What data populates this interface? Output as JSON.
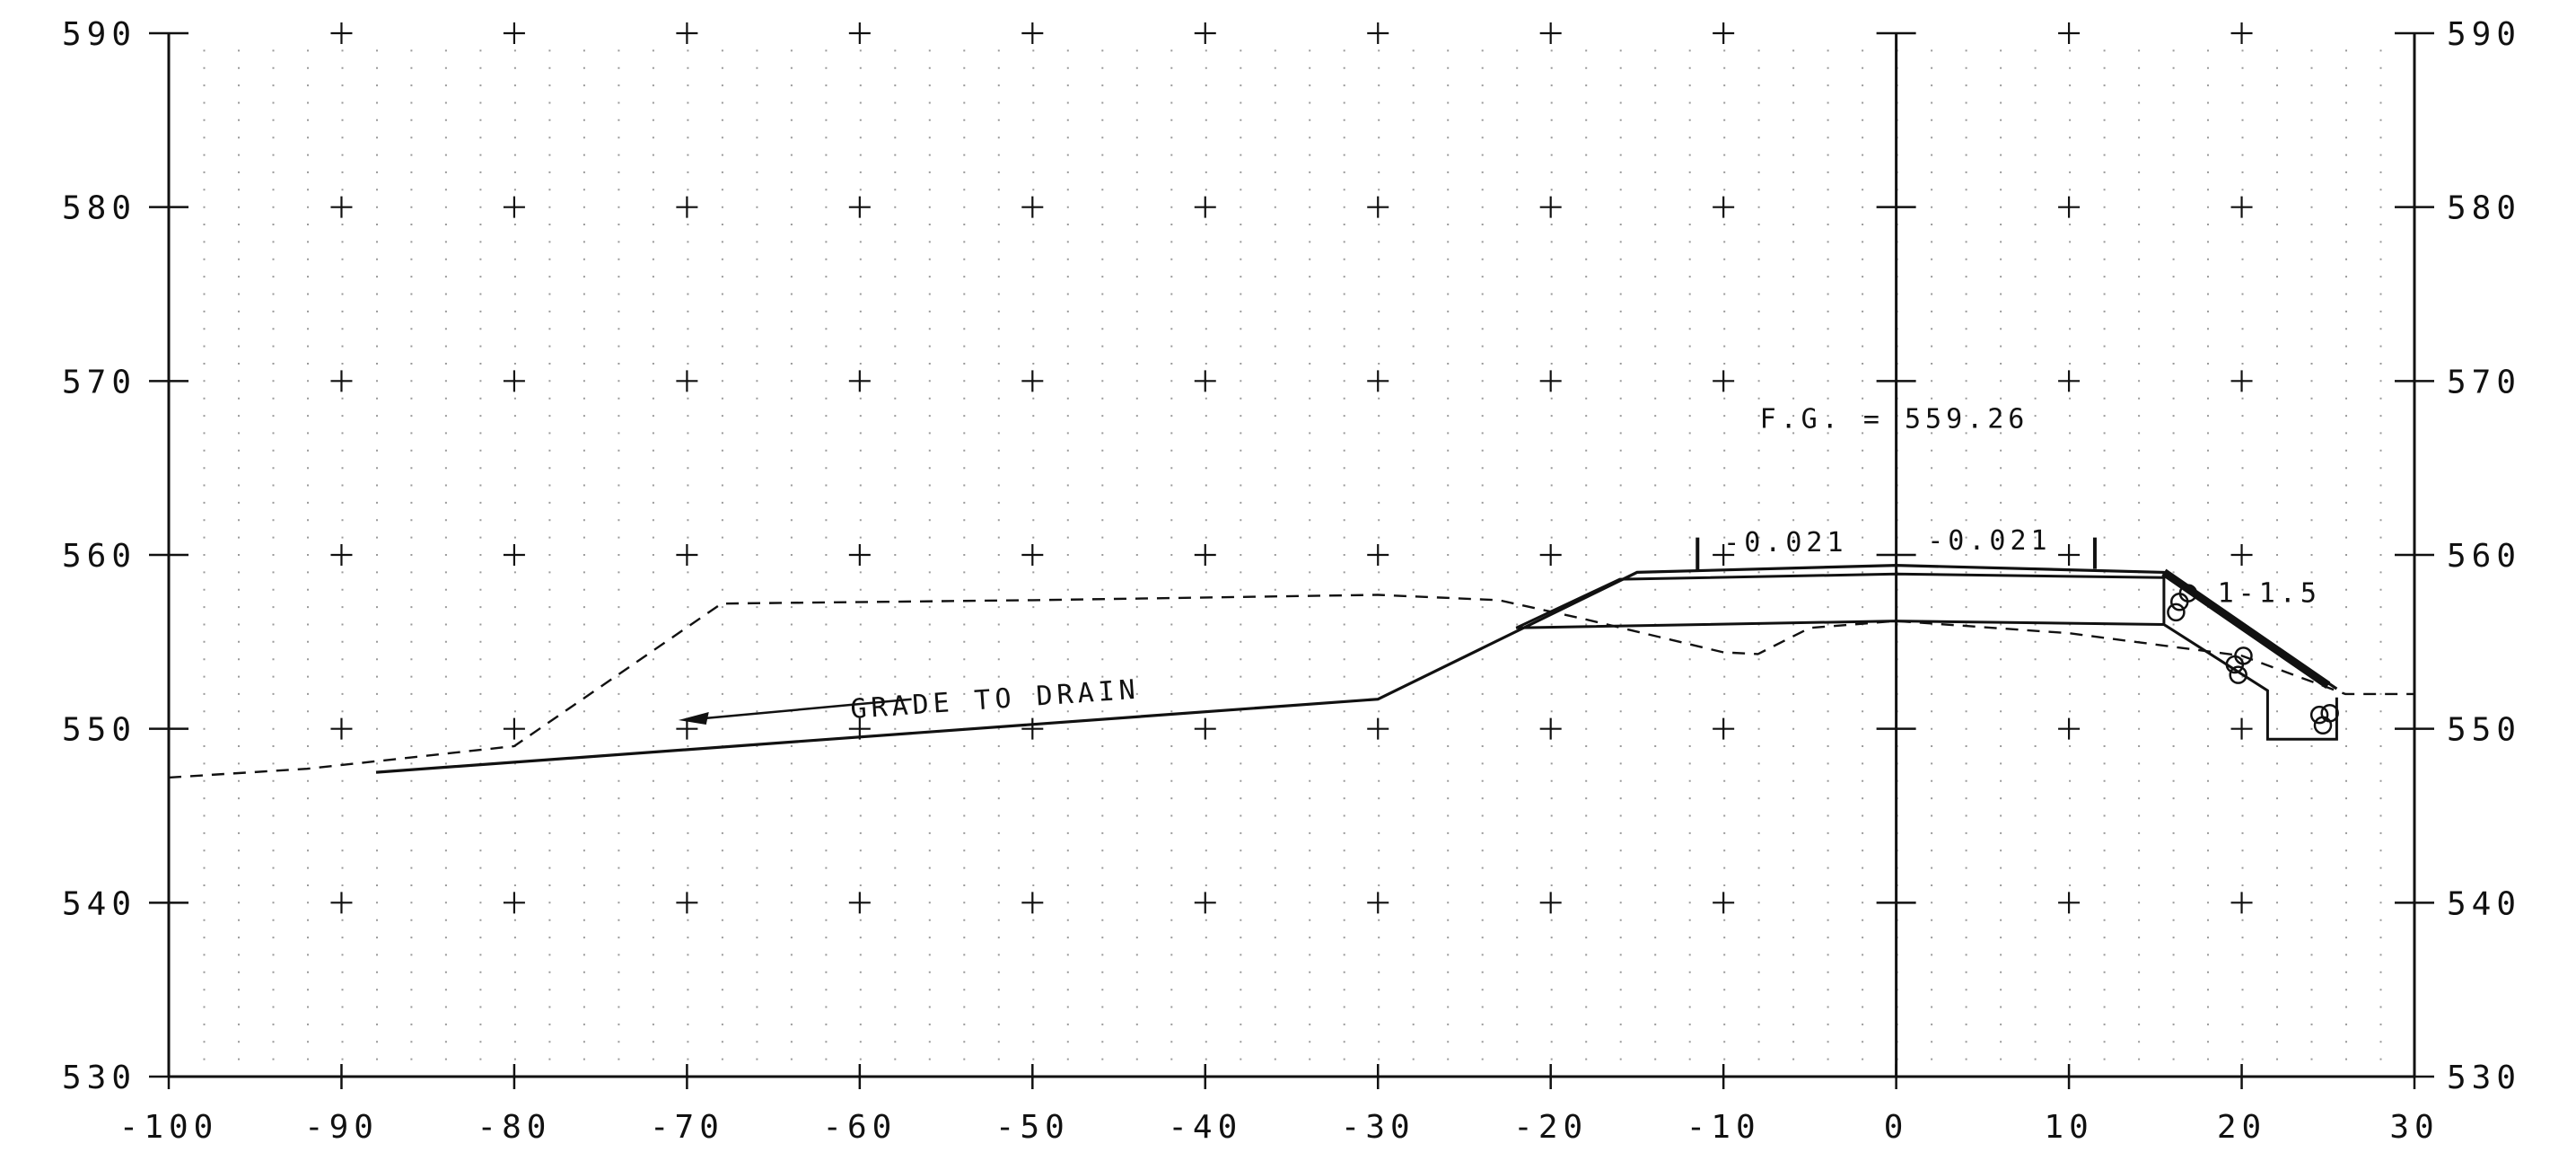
{
  "drawing": {
    "x_axis": {
      "min": -100,
      "max": 30,
      "step": 10,
      "labels": [
        "-100",
        "-90",
        "-80",
        "-70",
        "-60",
        "-50",
        "-40",
        "-30",
        "-20",
        "-10",
        "0",
        "10",
        "20",
        "30"
      ]
    },
    "y_axis": {
      "min": 530,
      "max": 590,
      "step": 10,
      "labels": [
        "530",
        "540",
        "550",
        "560",
        "570",
        "580",
        "590"
      ]
    },
    "centerline_x": 0,
    "grid_crosses": true,
    "dotted_grid": true
  },
  "annotations": {
    "finished_grade": "F.G.  = 559.26",
    "slope_left": "-0.021",
    "slope_right": "-0.021",
    "side_slope": "1-1.5",
    "grade_note": "GRADE TO DRAIN"
  },
  "profiles": {
    "existing_ground": [
      [
        -100,
        547.2
      ],
      [
        -92,
        547.7
      ],
      [
        -80,
        549
      ],
      [
        -68,
        557.2
      ],
      [
        -50,
        557.4
      ],
      [
        -30,
        557.7
      ],
      [
        -23,
        557.4
      ],
      [
        -18,
        556.3
      ],
      [
        -10,
        554.4
      ],
      [
        -8,
        554.3
      ],
      [
        -5,
        555.8
      ],
      [
        0,
        556.2
      ],
      [
        10,
        555.5
      ],
      [
        20,
        554.2
      ],
      [
        26,
        552
      ],
      [
        30,
        552
      ]
    ],
    "finished_grade": [
      [
        -88,
        547.5
      ],
      [
        -30,
        551.7
      ],
      [
        -15,
        559
      ],
      [
        0,
        559.4
      ],
      [
        15.5,
        559
      ],
      [
        25.5,
        552.3
      ]
    ],
    "subgrade": [
      [
        -22,
        555.8
      ],
      [
        -16,
        558.6
      ],
      [
        0,
        558.9
      ],
      [
        15.5,
        558.7
      ]
    ],
    "subgrade_bottom": [
      [
        -22,
        555.8
      ],
      [
        0,
        556.2
      ],
      [
        15.5,
        556
      ]
    ],
    "slope_protection": [
      [
        15.5,
        559
      ],
      [
        15.5,
        556
      ],
      [
        21.5,
        552.2
      ],
      [
        21.5,
        549.4
      ],
      [
        25.5,
        549.4
      ],
      [
        25.5,
        551.8
      ]
    ]
  }
}
